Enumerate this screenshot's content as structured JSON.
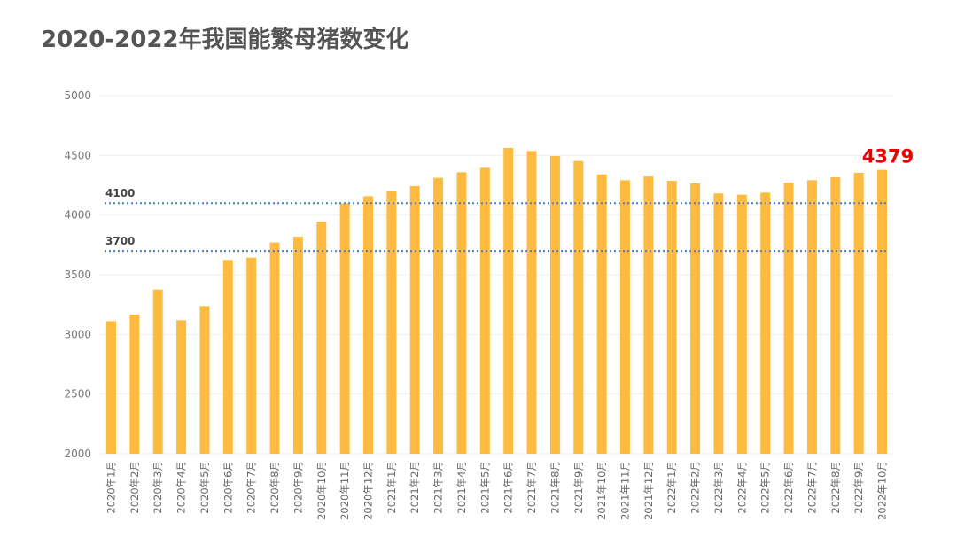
{
  "chart_data": {
    "type": "bar",
    "title": "2020-2022年我国能繁母猪数变化",
    "xlabel": "",
    "ylabel": "",
    "ylim": [
      2000,
      5000
    ],
    "yticks": [
      2000,
      2500,
      3000,
      3500,
      4000,
      4500,
      5000
    ],
    "grid": true,
    "bar_color": "#FFBA40",
    "reference_line_color": "#4A7FC4",
    "highlight_color": "#EE0000",
    "categories": [
      "2020年1月",
      "2020年2月",
      "2020年3月",
      "2020年4月",
      "2020年5月",
      "2020年6月",
      "2020年7月",
      "2020年8月",
      "2020年9月",
      "2020年10月",
      "2020年11月",
      "2020年12月",
      "2021年1月",
      "2021年2月",
      "2021年3月",
      "2021年4月",
      "2021年5月",
      "2021年6月",
      "2021年7月",
      "2021年8月",
      "2021年9月",
      "2021年10月",
      "2021年11月",
      "2021年12月",
      "2022年1月",
      "2022年2月",
      "2022年3月",
      "2022年4月",
      "2022年5月",
      "2022年6月",
      "2022年7月",
      "2022年8月",
      "2022年9月",
      "2022年10月"
    ],
    "values": [
      3111,
      3166,
      3376,
      3119,
      3238,
      3624,
      3643,
      3770,
      3819,
      3945,
      4097,
      4158,
      4200,
      4243,
      4312,
      4359,
      4396,
      4562,
      4537,
      4495,
      4453,
      4341,
      4292,
      4324,
      4287,
      4265,
      4181,
      4171,
      4188,
      4272,
      4292,
      4317,
      4354,
      4379
    ],
    "reference_lines": [
      {
        "value": 4100,
        "label": "4100"
      },
      {
        "value": 3700,
        "label": "3700"
      }
    ],
    "data_labels": [
      {
        "category": "2022年10月",
        "label": "4379"
      }
    ]
  }
}
